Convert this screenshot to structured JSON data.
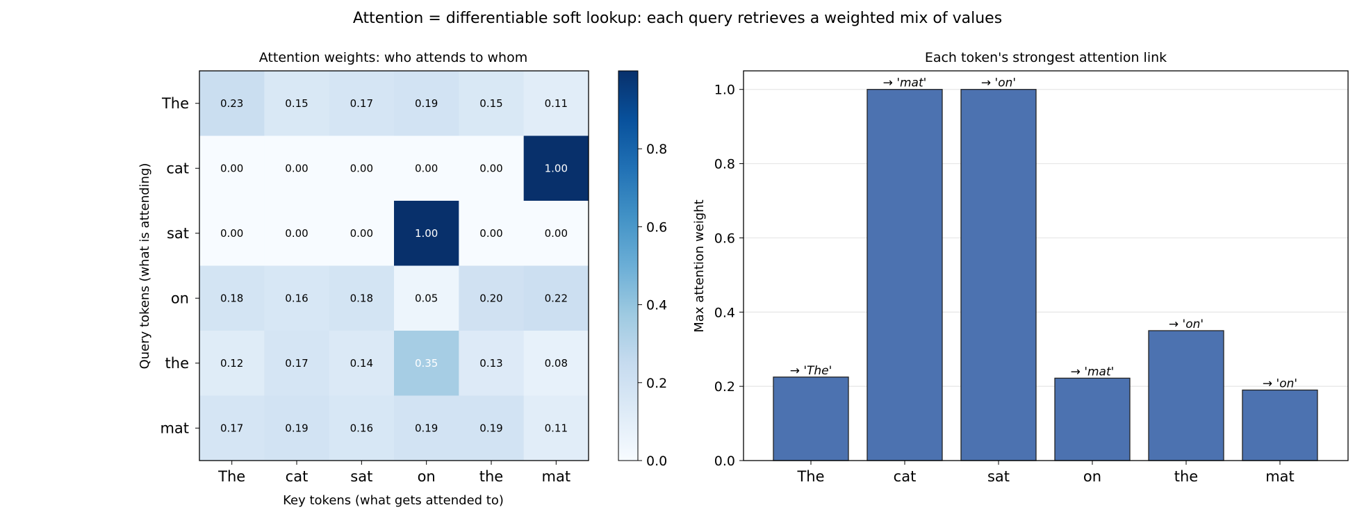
{
  "suptitle": "Attention = differentiable soft lookup: each query retrieves a weighted mix of values",
  "chart_data": [
    {
      "type": "heatmap",
      "title": "Attention weights: who attends to whom",
      "xlabel": "Key tokens (what gets attended to)",
      "ylabel": "Query tokens (what is attending)",
      "x_categories": [
        "The",
        "cat",
        "sat",
        "on",
        "the",
        "mat"
      ],
      "y_categories": [
        "The",
        "cat",
        "sat",
        "on",
        "the",
        "mat"
      ],
      "values": [
        [
          0.23,
          0.15,
          0.17,
          0.19,
          0.15,
          0.11
        ],
        [
          0.0,
          0.0,
          0.0,
          0.0,
          0.0,
          1.0
        ],
        [
          0.0,
          0.0,
          0.0,
          1.0,
          0.0,
          0.0
        ],
        [
          0.18,
          0.16,
          0.18,
          0.05,
          0.2,
          0.22
        ],
        [
          0.12,
          0.17,
          0.14,
          0.35,
          0.13,
          0.08
        ],
        [
          0.17,
          0.19,
          0.16,
          0.19,
          0.19,
          0.11
        ]
      ],
      "value_labels": [
        [
          "0.23",
          "0.15",
          "0.17",
          "0.19",
          "0.15",
          "0.11"
        ],
        [
          "0.00",
          "0.00",
          "0.00",
          "0.00",
          "0.00",
          "1.00"
        ],
        [
          "0.00",
          "0.00",
          "0.00",
          "1.00",
          "0.00",
          "0.00"
        ],
        [
          "0.18",
          "0.16",
          "0.18",
          "0.05",
          "0.20",
          "0.22"
        ],
        [
          "0.12",
          "0.17",
          "0.14",
          "0.35",
          "0.13",
          "0.08"
        ],
        [
          "0.17",
          "0.19",
          "0.16",
          "0.19",
          "0.19",
          "0.11"
        ]
      ],
      "colormap": "Blues",
      "colorbar": {
        "range": [
          0,
          1
        ],
        "ticks": [
          "0.0",
          "0.2",
          "0.4",
          "0.6",
          "0.8"
        ]
      }
    },
    {
      "type": "bar",
      "title": "Each token's strongest attention link",
      "xlabel": "",
      "ylabel": "Max attention weight",
      "categories": [
        "The",
        "cat",
        "sat",
        "on",
        "the",
        "mat"
      ],
      "values": [
        0.225,
        1.0,
        1.0,
        0.222,
        0.35,
        0.19
      ],
      "bar_labels": [
        "→ 'The'",
        "→ 'mat'",
        "→ 'on'",
        "→ 'mat'",
        "→ 'on'",
        "→ 'on'"
      ],
      "ylim": [
        0,
        1.05
      ],
      "yticks": [
        "0.0",
        "0.2",
        "0.4",
        "0.6",
        "0.8",
        "1.0"
      ],
      "grid": "horizontal",
      "bar_color": "#4c72b0",
      "edge_color": "#222222"
    }
  ]
}
